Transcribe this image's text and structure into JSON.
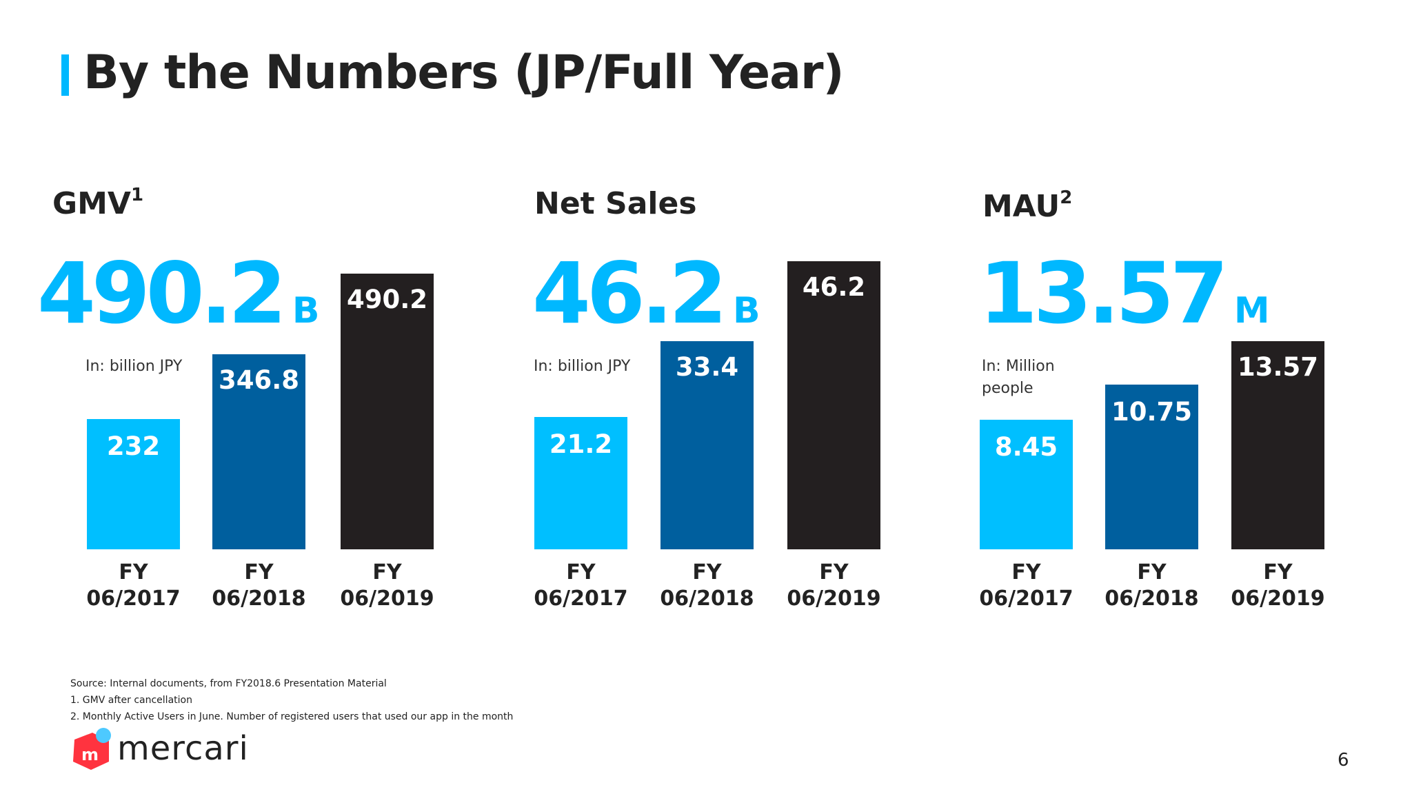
{
  "slide": {
    "title": "By the Numbers (JP/Full Year)",
    "page_number": "6",
    "brand": "mercari",
    "colors": {
      "accent": "#00b8ff",
      "fy2017": "#00bfff",
      "fy2018": "#005f9e",
      "fy2019": "#231f20"
    }
  },
  "panels": [
    {
      "title": "GMV",
      "title_sup": "1",
      "headline_value": "490.2",
      "headline_unit": "B",
      "unit_note": "In: billion JPY"
    },
    {
      "title": "Net Sales",
      "title_sup": "",
      "headline_value": "46.2",
      "headline_unit": "B",
      "unit_note": "In: billion JPY"
    },
    {
      "title": "MAU",
      "title_sup": "2",
      "headline_value": "13.57",
      "headline_unit": "M",
      "unit_note_line1": "In: Million",
      "unit_note_line2": "people"
    }
  ],
  "chart_data": [
    {
      "type": "bar",
      "title": "GMV",
      "categories": [
        [
          "FY",
          "06/2017"
        ],
        [
          "FY",
          "06/2018"
        ],
        [
          "FY",
          "06/2019"
        ]
      ],
      "values": [
        232,
        346.8,
        490.2
      ],
      "labels": [
        "232",
        "346.8",
        "490.2"
      ],
      "ylabel": "In: billion JPY"
    },
    {
      "type": "bar",
      "title": "Net Sales",
      "categories": [
        [
          "FY",
          "06/2017"
        ],
        [
          "FY",
          "06/2018"
        ],
        [
          "FY",
          "06/2019"
        ]
      ],
      "values": [
        21.2,
        33.4,
        46.2
      ],
      "labels": [
        "21.2",
        "33.4",
        "46.2"
      ],
      "ylabel": "In: billion JPY"
    },
    {
      "type": "bar",
      "title": "MAU",
      "categories": [
        [
          "FY",
          "06/2017"
        ],
        [
          "FY",
          "06/2018"
        ],
        [
          "FY",
          "06/2019"
        ]
      ],
      "values": [
        8.45,
        10.75,
        13.57
      ],
      "labels": [
        "8.45",
        "10.75",
        "13.57"
      ],
      "ylabel": "In: Million people"
    }
  ],
  "footnotes": {
    "source": "Source:  Internal documents, from FY2018.6 Presentation Material",
    "note1": "1. GMV after cancellation",
    "note2": "2. Monthly Active Users in June. Number of registered users that used our app in the month"
  }
}
